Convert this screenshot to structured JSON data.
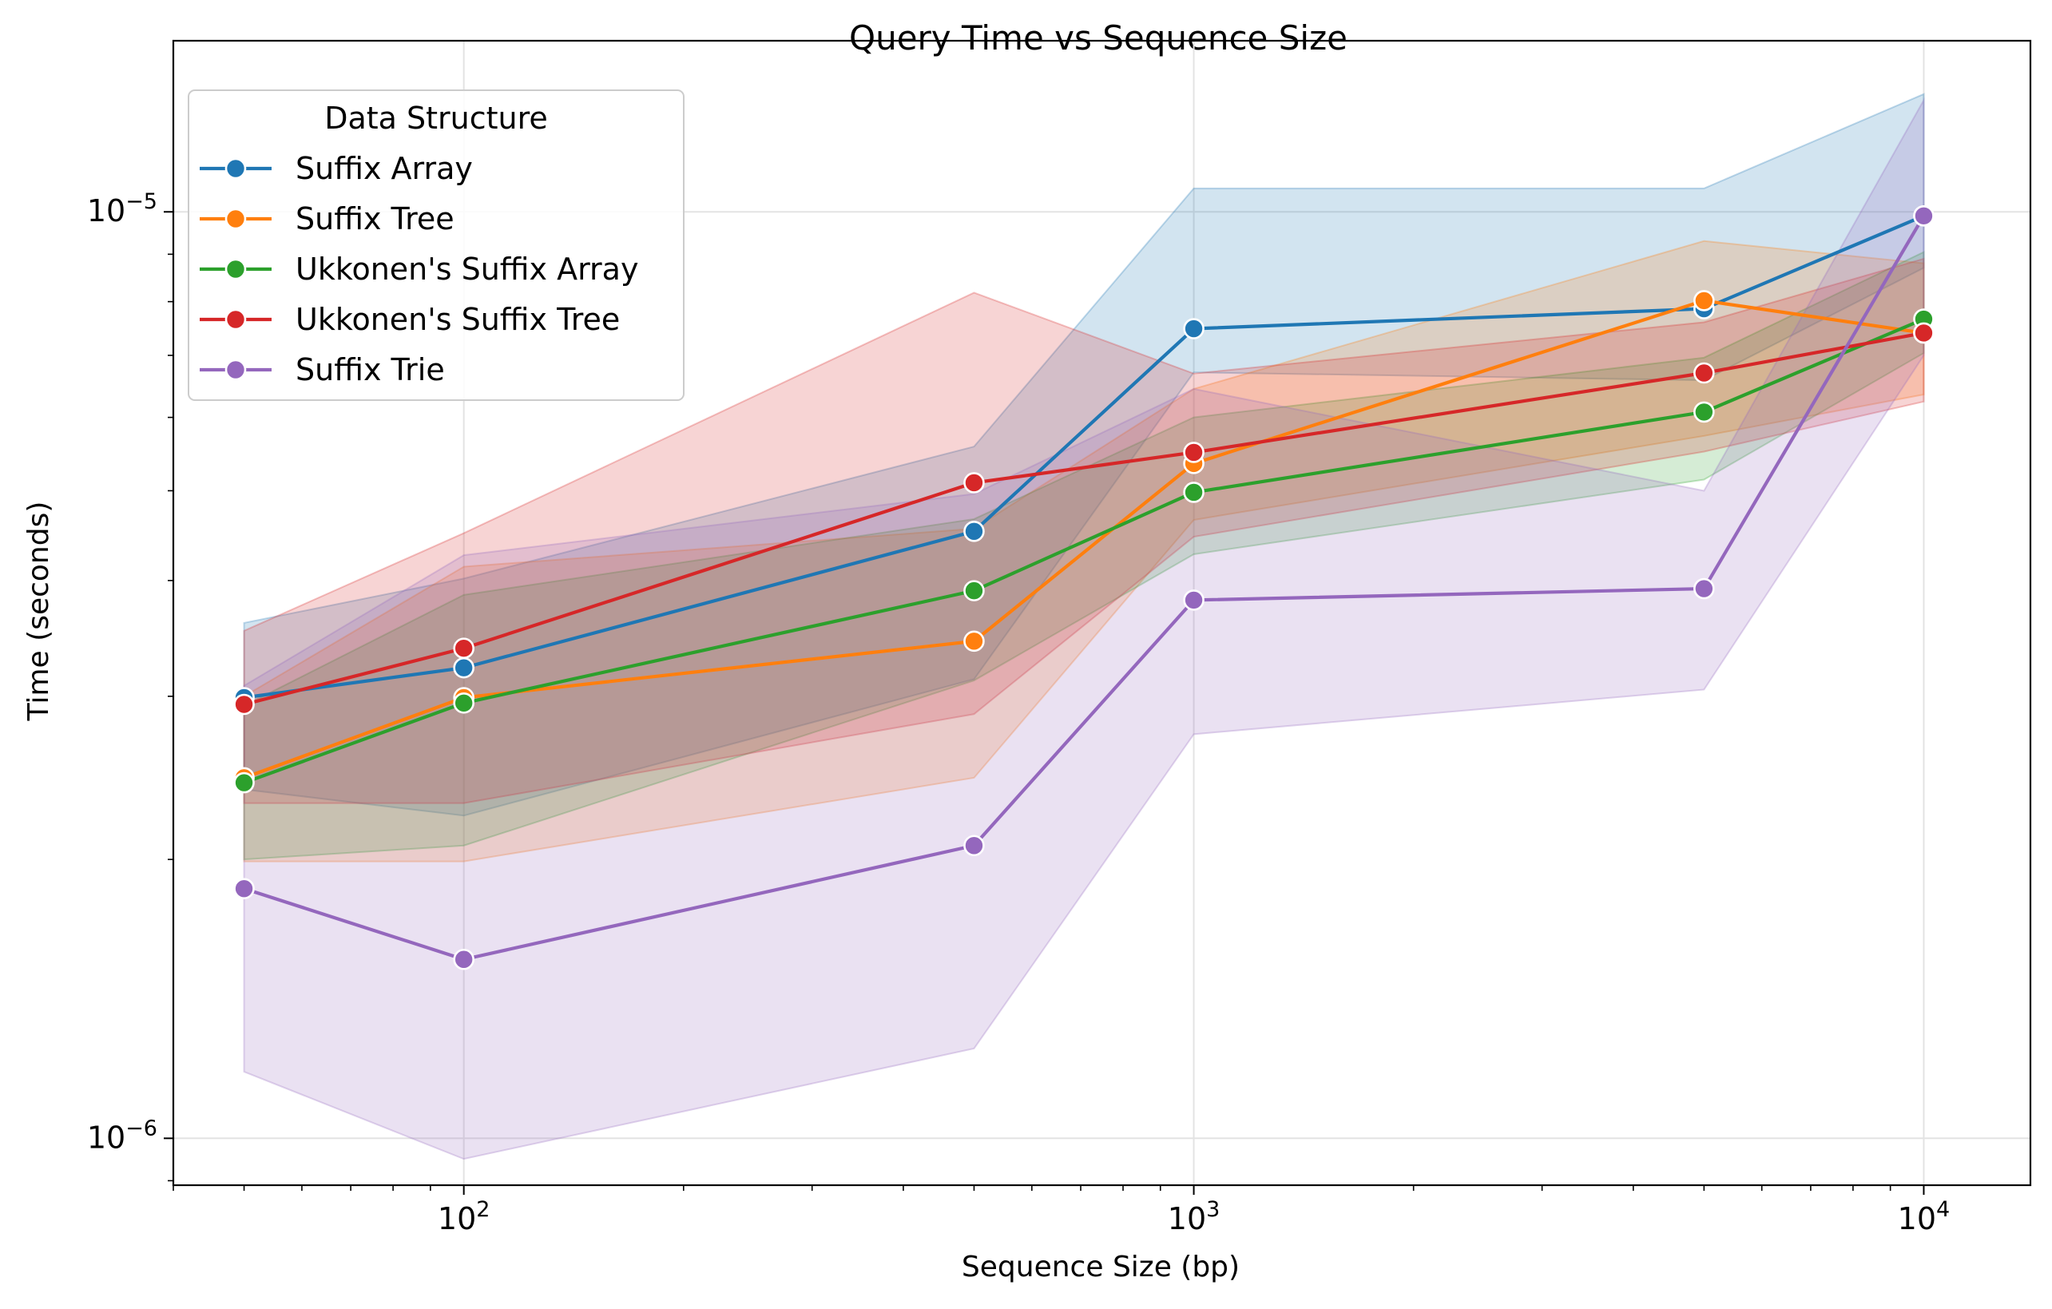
{
  "chart_data": {
    "type": "line",
    "title": "Query Time vs Sequence Size",
    "xlabel": "Sequence Size (bp)",
    "ylabel": "Time (seconds)",
    "x_scale": "log",
    "y_scale": "log",
    "xlim": [
      40,
      14000
    ],
    "ylim": [
      8.9e-07,
      1.53e-05
    ],
    "grid": true,
    "x_ticks": [
      {
        "value": 100,
        "base": "10",
        "exp": "2"
      },
      {
        "value": 1000,
        "base": "10",
        "exp": "3"
      },
      {
        "value": 10000,
        "base": "10",
        "exp": "4"
      }
    ],
    "y_ticks": [
      {
        "value": 1e-06,
        "base": "10",
        "exp": "−6"
      },
      {
        "value": 1e-05,
        "base": "10",
        "exp": "−5"
      }
    ],
    "legend": {
      "title": "Data Structure",
      "position": "upper-left"
    },
    "x": [
      50,
      100,
      500,
      1000,
      5000,
      10000
    ],
    "series": [
      {
        "name": "Suffix Array",
        "color": "#1f77b4",
        "values": [
          2.99e-06,
          3.22e-06,
          4.52e-06,
          7.48e-06,
          7.86e-06,
          9.9e-06
        ],
        "lower": [
          2.38e-06,
          2.23e-06,
          3.13e-06,
          6.71e-06,
          6.58e-06,
          8.7e-06
        ],
        "upper": [
          3.6e-06,
          4.02e-06,
          5.58e-06,
          1.06e-05,
          1.06e-05,
          1.34e-05
        ]
      },
      {
        "name": "Suffix Tree",
        "color": "#ff7f0e",
        "values": [
          2.45e-06,
          2.99e-06,
          3.44e-06,
          5.35e-06,
          8.02e-06,
          7.4e-06
        ],
        "lower": [
          1.99e-06,
          1.99e-06,
          2.45e-06,
          4.65e-06,
          5.73e-06,
          6.35e-06
        ],
        "upper": [
          3e-06,
          4.14e-06,
          4.55e-06,
          6.44e-06,
          9.3e-06,
          8.8e-06
        ]
      },
      {
        "name": "Ukkonen's Suffix Array",
        "color": "#2ca02c",
        "values": [
          2.42e-06,
          2.95e-06,
          3.9e-06,
          4.98e-06,
          6.08e-06,
          7.66e-06
        ],
        "lower": [
          2e-06,
          2.07e-06,
          3.12e-06,
          4.27e-06,
          5.14e-06,
          7.04e-06
        ],
        "upper": [
          2.93e-06,
          3.86e-06,
          4.66e-06,
          6e-06,
          6.96e-06,
          9.05e-06
        ]
      },
      {
        "name": "Ukkonen's Suffix Tree",
        "color": "#d62728",
        "values": [
          2.94e-06,
          3.38e-06,
          5.1e-06,
          5.5e-06,
          6.7e-06,
          7.4e-06
        ],
        "lower": [
          2.3e-06,
          2.3e-06,
          2.87e-06,
          4.46e-06,
          5.51e-06,
          6.24e-06
        ],
        "upper": [
          3.53e-06,
          4.5e-06,
          8.18e-06,
          6.69e-06,
          7.6e-06,
          8.9e-06
        ]
      },
      {
        "name": "Suffix Trie",
        "color": "#9467bd",
        "values": [
          1.86e-06,
          1.56e-06,
          2.07e-06,
          3.81e-06,
          3.92e-06,
          9.9e-06
        ],
        "lower": [
          1.18e-06,
          9.5e-07,
          1.25e-06,
          2.73e-06,
          3.05e-06,
          7e-06
        ],
        "upper": [
          3.08e-06,
          4.26e-06,
          4.96e-06,
          6.44e-06,
          5e-06,
          1.32e-05
        ]
      }
    ]
  }
}
